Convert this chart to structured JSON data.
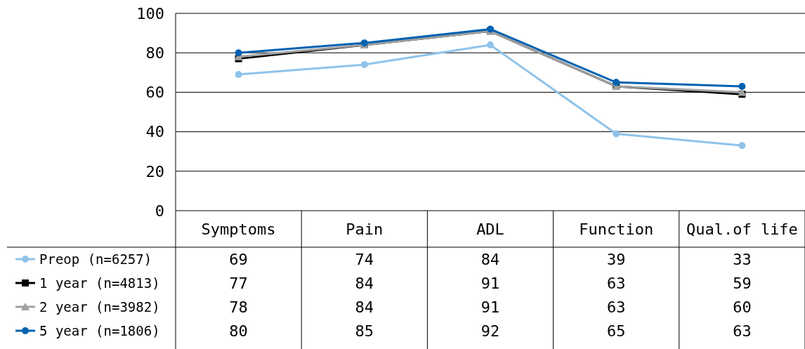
{
  "chart_data": {
    "type": "line",
    "categories": [
      "Symptoms",
      "Pain",
      "ADL",
      "Function",
      "Qual.of life"
    ],
    "series": [
      {
        "name": "Preop (n=6257)",
        "color": "#8fc3ea",
        "marker": "circle",
        "values": [
          69,
          74,
          84,
          39,
          33
        ]
      },
      {
        "name": "1 year (n=4813)",
        "color": "#000000",
        "marker": "square",
        "values": [
          77,
          84,
          91,
          63,
          59
        ]
      },
      {
        "name": "2 year (n=3982)",
        "color": "#a0a0a0",
        "marker": "triangle",
        "values": [
          78,
          84,
          91,
          63,
          60
        ]
      },
      {
        "name": "5 year (n=1806)",
        "color": "#0062b1",
        "marker": "circle",
        "values": [
          80,
          85,
          92,
          65,
          63
        ]
      }
    ],
    "ylim": [
      0,
      100
    ],
    "yticks": [
      0,
      20,
      40,
      60,
      80,
      100
    ],
    "grid": "y",
    "legend": "bottom left",
    "data_labels": true
  }
}
